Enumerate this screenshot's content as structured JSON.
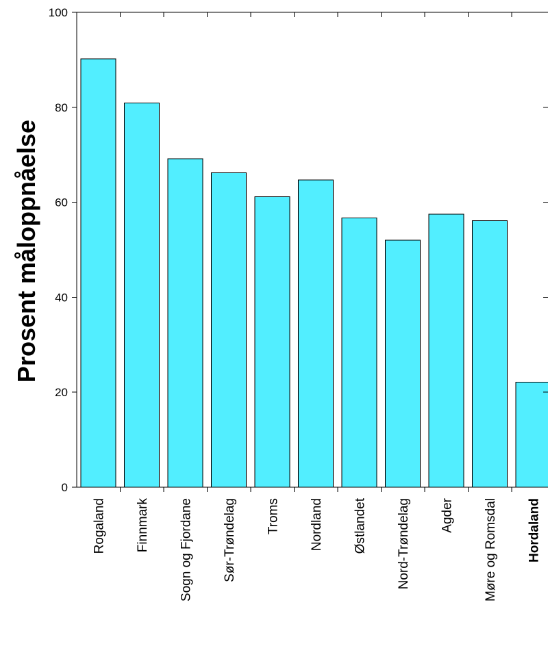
{
  "chart_data": {
    "type": "bar",
    "title": "",
    "xlabel": "",
    "ylabel": "Prosent måloppnåelse",
    "ylim": [
      0,
      100
    ],
    "yticks": [
      0,
      20,
      40,
      60,
      80,
      100
    ],
    "grid": false,
    "categories": [
      "Rogaland",
      "Finnmark",
      "Sogn og Fjordane",
      "Sør-Trøndelag",
      "Troms",
      "Nordland",
      "Østlandet",
      "Nord-Trøndelag",
      "Agder",
      "Møre og Romsdal",
      "Hordaland"
    ],
    "values": [
      90.2,
      80.9,
      69.2,
      66.2,
      61.2,
      64.7,
      56.7,
      52.0,
      57.5,
      56.1,
      22.1
    ],
    "highlighted_category": "Hordaland",
    "bar_color": "#52EEFF"
  }
}
